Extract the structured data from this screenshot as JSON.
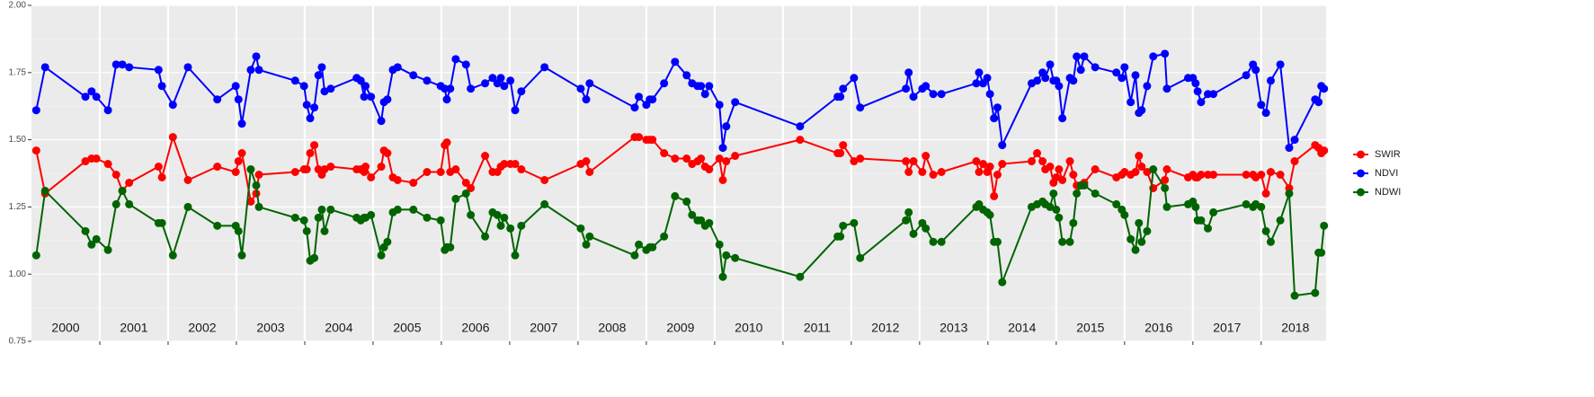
{
  "chart_data": {
    "type": "line",
    "x": [
      2000.07,
      2000.2,
      2000.79,
      2000.88,
      2000.95,
      2001.12,
      2001.24,
      2001.33,
      2001.43,
      2001.86,
      2001.91,
      2002.07,
      2002.29,
      2002.72,
      2002.99,
      2003.03,
      2003.08,
      2003.21,
      2003.29,
      2003.33,
      2003.86,
      2003.99,
      2004.03,
      2004.08,
      2004.14,
      2004.2,
      2004.25,
      2004.29,
      2004.38,
      2004.76,
      2004.82,
      2004.87,
      2004.89,
      2004.97,
      2005.12,
      2005.16,
      2005.21,
      2005.29,
      2005.36,
      2005.59,
      2005.79,
      2005.99,
      2006.05,
      2006.08,
      2006.13,
      2006.21,
      2006.36,
      2006.43,
      2006.64,
      2006.75,
      2006.82,
      2006.87,
      2006.92,
      2007.01,
      2007.08,
      2007.17,
      2007.51,
      2008.04,
      2008.12,
      2008.17,
      2008.83,
      2008.89,
      2009.0,
      2009.05,
      2009.09,
      2009.26,
      2009.42,
      2009.59,
      2009.67,
      2009.75,
      2009.8,
      2009.86,
      2009.92,
      2010.07,
      2010.12,
      2010.17,
      2010.3,
      2011.25,
      2011.8,
      2011.84,
      2011.88,
      2012.04,
      2012.13,
      2012.8,
      2012.84,
      2012.91,
      2013.04,
      2013.09,
      2013.2,
      2013.32,
      2013.83,
      2013.87,
      2013.93,
      2013.99,
      2014.03,
      2014.09,
      2014.14,
      2014.21,
      2014.64,
      2014.72,
      2014.8,
      2014.84,
      2014.91,
      2014.96,
      2015.0,
      2015.04,
      2015.09,
      2015.2,
      2015.25,
      2015.3,
      2015.36,
      2015.41,
      2015.57,
      2015.88,
      2015.96,
      2016.0,
      2016.09,
      2016.16,
      2016.21,
      2016.25,
      2016.33,
      2016.42,
      2016.59,
      2016.62,
      2016.93,
      2017.0,
      2017.04,
      2017.07,
      2017.12,
      2017.22,
      2017.3,
      2017.78,
      2017.88,
      2017.92,
      2018.0,
      2018.07,
      2018.14,
      2018.28,
      2018.41,
      2018.49,
      2018.79,
      2018.84,
      2018.88,
      2018.92
    ],
    "series": [
      {
        "name": "SWIR",
        "color": "#ff0000",
        "values": [
          1.46,
          1.3,
          1.42,
          1.43,
          1.43,
          1.41,
          1.37,
          1.31,
          1.34,
          1.4,
          1.36,
          1.51,
          1.35,
          1.4,
          1.38,
          1.42,
          1.45,
          1.27,
          1.3,
          1.37,
          1.38,
          1.39,
          1.39,
          1.45,
          1.48,
          1.39,
          1.37,
          1.39,
          1.4,
          1.39,
          1.39,
          1.38,
          1.4,
          1.36,
          1.4,
          1.46,
          1.45,
          1.36,
          1.35,
          1.34,
          1.38,
          1.38,
          1.48,
          1.49,
          1.38,
          1.39,
          1.34,
          1.32,
          1.44,
          1.38,
          1.38,
          1.4,
          1.41,
          1.41,
          1.41,
          1.39,
          1.35,
          1.41,
          1.42,
          1.38,
          1.51,
          1.51,
          1.5,
          1.5,
          1.5,
          1.45,
          1.43,
          1.43,
          1.41,
          1.42,
          1.43,
          1.4,
          1.39,
          1.43,
          1.35,
          1.42,
          1.44,
          1.5,
          1.45,
          1.45,
          1.48,
          1.42,
          1.43,
          1.42,
          1.38,
          1.42,
          1.38,
          1.44,
          1.37,
          1.38,
          1.42,
          1.38,
          1.41,
          1.38,
          1.4,
          1.29,
          1.37,
          1.41,
          1.42,
          1.45,
          1.42,
          1.39,
          1.4,
          1.34,
          1.36,
          1.39,
          1.35,
          1.42,
          1.37,
          1.33,
          1.33,
          1.34,
          1.39,
          1.36,
          1.37,
          1.38,
          1.37,
          1.38,
          1.44,
          1.4,
          1.38,
          1.32,
          1.35,
          1.39,
          1.36,
          1.37,
          1.36,
          1.36,
          1.37,
          1.37,
          1.37,
          1.37,
          1.37,
          1.36,
          1.37,
          1.3,
          1.38,
          1.37,
          1.32,
          1.42,
          1.48,
          1.47,
          1.45,
          1.46
        ]
      },
      {
        "name": "NDVI",
        "color": "#0000ff",
        "values": [
          1.61,
          1.77,
          1.66,
          1.68,
          1.66,
          1.61,
          1.78,
          1.78,
          1.77,
          1.76,
          1.7,
          1.63,
          1.77,
          1.65,
          1.7,
          1.65,
          1.56,
          1.76,
          1.81,
          1.76,
          1.72,
          1.7,
          1.63,
          1.58,
          1.62,
          1.74,
          1.77,
          1.68,
          1.69,
          1.73,
          1.72,
          1.66,
          1.7,
          1.66,
          1.57,
          1.64,
          1.65,
          1.76,
          1.77,
          1.74,
          1.72,
          1.7,
          1.69,
          1.65,
          1.69,
          1.8,
          1.78,
          1.69,
          1.71,
          1.73,
          1.71,
          1.73,
          1.7,
          1.72,
          1.61,
          1.68,
          1.77,
          1.69,
          1.65,
          1.71,
          1.62,
          1.66,
          1.63,
          1.65,
          1.65,
          1.71,
          1.79,
          1.74,
          1.71,
          1.7,
          1.7,
          1.67,
          1.7,
          1.63,
          1.47,
          1.55,
          1.64,
          1.55,
          1.66,
          1.66,
          1.69,
          1.73,
          1.62,
          1.69,
          1.75,
          1.66,
          1.69,
          1.7,
          1.67,
          1.67,
          1.71,
          1.75,
          1.71,
          1.73,
          1.67,
          1.58,
          1.62,
          1.48,
          1.71,
          1.72,
          1.75,
          1.73,
          1.78,
          1.72,
          1.72,
          1.7,
          1.58,
          1.73,
          1.72,
          1.81,
          1.76,
          1.81,
          1.77,
          1.75,
          1.73,
          1.77,
          1.64,
          1.74,
          1.6,
          1.61,
          1.7,
          1.81,
          1.82,
          1.69,
          1.73,
          1.73,
          1.71,
          1.68,
          1.64,
          1.67,
          1.67,
          1.74,
          1.78,
          1.76,
          1.63,
          1.6,
          1.72,
          1.78,
          1.47,
          1.5,
          1.65,
          1.64,
          1.7,
          1.69
        ]
      },
      {
        "name": "NDWI",
        "color": "#006400",
        "values": [
          1.07,
          1.31,
          1.16,
          1.11,
          1.13,
          1.09,
          1.26,
          1.31,
          1.26,
          1.19,
          1.19,
          1.07,
          1.25,
          1.18,
          1.18,
          1.16,
          1.07,
          1.39,
          1.33,
          1.25,
          1.21,
          1.2,
          1.16,
          1.05,
          1.06,
          1.21,
          1.24,
          1.16,
          1.24,
          1.21,
          1.2,
          1.21,
          1.21,
          1.22,
          1.07,
          1.1,
          1.12,
          1.23,
          1.24,
          1.24,
          1.21,
          1.2,
          1.09,
          1.1,
          1.1,
          1.28,
          1.3,
          1.22,
          1.14,
          1.23,
          1.22,
          1.18,
          1.21,
          1.17,
          1.07,
          1.18,
          1.26,
          1.17,
          1.11,
          1.14,
          1.07,
          1.11,
          1.09,
          1.1,
          1.1,
          1.14,
          1.29,
          1.27,
          1.22,
          1.2,
          1.2,
          1.18,
          1.19,
          1.11,
          0.99,
          1.07,
          1.06,
          0.99,
          1.14,
          1.14,
          1.18,
          1.19,
          1.06,
          1.2,
          1.23,
          1.15,
          1.19,
          1.17,
          1.12,
          1.12,
          1.25,
          1.26,
          1.24,
          1.23,
          1.22,
          1.12,
          1.12,
          0.97,
          1.25,
          1.26,
          1.27,
          1.26,
          1.25,
          1.3,
          1.24,
          1.21,
          1.12,
          1.12,
          1.19,
          1.3,
          1.33,
          1.33,
          1.3,
          1.26,
          1.24,
          1.22,
          1.13,
          1.09,
          1.19,
          1.12,
          1.16,
          1.39,
          1.32,
          1.25,
          1.26,
          1.27,
          1.25,
          1.2,
          1.2,
          1.17,
          1.23,
          1.26,
          1.25,
          1.26,
          1.25,
          1.16,
          1.12,
          1.2,
          1.3,
          0.92,
          0.93,
          1.08,
          1.08,
          1.18
        ]
      }
    ],
    "year_labels": [
      "2000",
      "2001",
      "2002",
      "2003",
      "2004",
      "2005",
      "2006",
      "2007",
      "2008",
      "2009",
      "2010",
      "2011",
      "2012",
      "2013",
      "2014",
      "2015",
      "2016",
      "2017",
      "2018"
    ],
    "xlim": [
      2000,
      2018.95
    ],
    "xticks": [
      2001,
      2002,
      2003,
      2004,
      2005,
      2006,
      2007,
      2008,
      2009,
      2010,
      2011,
      2012,
      2013,
      2014,
      2015,
      2016,
      2017,
      2018
    ],
    "ylim": [
      0.75,
      2.0
    ],
    "yticks": [
      {
        "value": 0.75,
        "label": "0.75"
      },
      {
        "value": 1,
        "label": "1.00"
      },
      1.25,
      {
        "value": 1.5,
        "label": "1.50"
      },
      1.75,
      {
        "value": 2,
        "label": "2.00"
      }
    ],
    "grid": true,
    "legend": "right"
  }
}
